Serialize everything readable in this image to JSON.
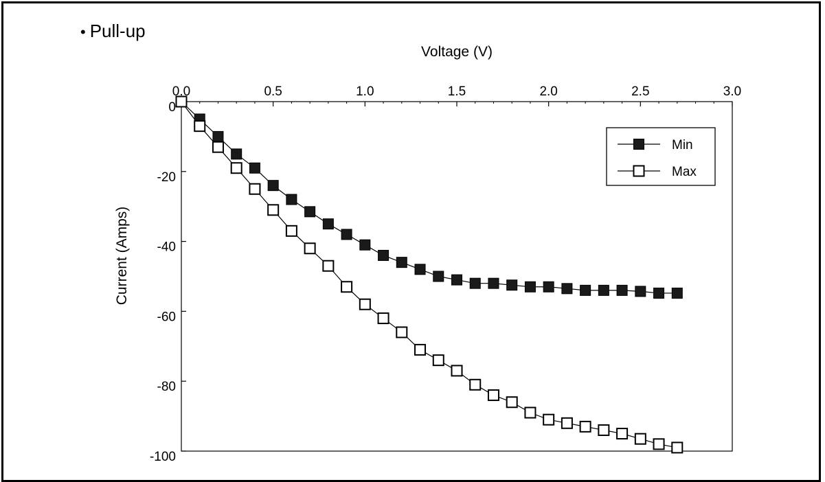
{
  "heading": {
    "bullet": "•",
    "text": "Pull-up"
  },
  "chart_data": {
    "type": "line",
    "xlabel": "Voltage  (V)",
    "ylabel": "Current  (Amps)",
    "xlim": [
      0,
      3.0
    ],
    "ylim": [
      -100,
      0
    ],
    "x_axis_position": "top",
    "x_ticks": [
      "0.0",
      "0.5",
      "1.0",
      "1.5",
      "2.0",
      "2.5",
      "3.0"
    ],
    "y_ticks": [
      "0",
      "-20",
      "-40",
      "-60",
      "-80",
      "-100"
    ],
    "grid": false,
    "legend_position": "top-right",
    "series": [
      {
        "name": "Min",
        "marker": "filled-square",
        "x": [
          0.0,
          0.1,
          0.2,
          0.3,
          0.4,
          0.5,
          0.6,
          0.7,
          0.8,
          0.9,
          1.0,
          1.1,
          1.2,
          1.3,
          1.4,
          1.5,
          1.6,
          1.7,
          1.8,
          1.9,
          2.0,
          2.1,
          2.2,
          2.3,
          2.4,
          2.5,
          2.6,
          2.7
        ],
        "values": [
          0,
          -5,
          -10,
          -15,
          -19,
          -24,
          -28,
          -31.5,
          -35,
          -38,
          -41,
          -44,
          -46,
          -48,
          -50,
          -51,
          -52,
          -52,
          -52.5,
          -53,
          -53,
          -53.5,
          -54,
          -54,
          -54,
          -54.3,
          -54.8,
          -54.8
        ]
      },
      {
        "name": "Max",
        "marker": "open-square",
        "x": [
          0.0,
          0.1,
          0.2,
          0.3,
          0.4,
          0.5,
          0.6,
          0.7,
          0.8,
          0.9,
          1.0,
          1.1,
          1.2,
          1.3,
          1.4,
          1.5,
          1.6,
          1.7,
          1.8,
          1.9,
          2.0,
          2.1,
          2.2,
          2.3,
          2.4,
          2.5,
          2.6,
          2.7
        ],
        "values": [
          0,
          -7,
          -13,
          -19,
          -25,
          -31,
          -37,
          -42,
          -47,
          -53,
          -58,
          -62,
          -66,
          -71,
          -74,
          -77,
          -81,
          -84,
          -86,
          -89,
          -91,
          -92,
          -93,
          -94,
          -95,
          -96.5,
          -98,
          -99
        ]
      }
    ]
  }
}
